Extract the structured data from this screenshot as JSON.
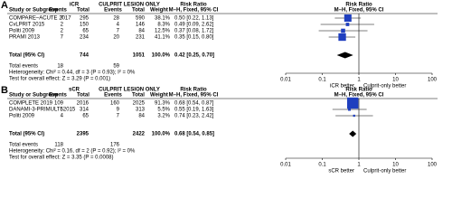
{
  "chart_data": [
    {
      "type": "forest",
      "panel": "A",
      "study_header": "Study or Subgroup",
      "group": "iCR",
      "control": "CULPRIT LESION ONLY",
      "events_header": "Events",
      "total_header": "Total",
      "weight_header": "Weight",
      "rr_col_title": "Risk Ratio",
      "rr_col_method": "M–H, Fixed, 95% CI",
      "plot_title": "Risk Ratio",
      "plot_method": "M–H, Fixed, 95% CI",
      "studies": [
        "COMPARE–ACUTE 2017",
        "CvLPRIT 2015",
        "Politi 2009",
        "PRAMI 2013"
      ],
      "group_events": [
        7,
        2,
        2,
        7
      ],
      "group_total": [
        295,
        150,
        65,
        234
      ],
      "control_events": [
        28,
        4,
        7,
        20
      ],
      "control_total": [
        590,
        146,
        84,
        231
      ],
      "weight": [
        38.1,
        8.3,
        12.5,
        41.1
      ],
      "weight_labels": [
        "38.1%",
        "8.3%",
        "12.5%",
        "41.1%"
      ],
      "values": [
        0.5,
        0.49,
        0.37,
        0.35
      ],
      "ci_low": [
        0.22,
        0.09,
        0.08,
        0.15
      ],
      "ci_high": [
        1.13,
        2.62,
        1.72,
        0.8
      ],
      "value_labels": [
        "0.50 [0.22, 1.13]",
        "0.49 [0.09, 2.62]",
        "0.37 [0.08, 1.72]",
        "0.35 [0.15, 0.80]"
      ],
      "total_label": "Total (95% CI)",
      "total_group": 744,
      "total_control": 1051,
      "total_weight": 100,
      "total_weight_label": "100.0%",
      "total_value": 0.42,
      "total_low": 0.25,
      "total_high": 0.7,
      "total_value_label": "0.42 [0.25, 0.70]",
      "events_label": "Total events",
      "events_group": 18,
      "events_control": 59,
      "heterogeneity": "Heterogeneity: Chi² = 0.44, df = 3 (P = 0.93); I² = 0%",
      "overall": "Test for overall effect: Z = 3.29 (P = 0.001)",
      "log": true,
      "xlim": [
        0.01,
        100
      ],
      "xticks": [
        0.01,
        0.1,
        1,
        10,
        100
      ],
      "reference": 1,
      "xlabel_left": "iCR better",
      "xlabel_right": "Culprit-only better",
      "color": "#1f3fbf"
    },
    {
      "type": "forest",
      "panel": "B",
      "study_header": "Study or Subgroup",
      "group": "sCR",
      "control": "CULPRIT LESION ONLY",
      "events_header": "Events",
      "total_header": "Total",
      "weight_header": "Weight",
      "rr_col_title": "Risk Ratio",
      "rr_col_method": "M–H, Fixed, 95% CI",
      "plot_title": "Risk Ratio",
      "plot_method": "M–H, Fixed, 95% CI",
      "studies": [
        "COMPLETE 2019",
        "DANAMI-3-PRIMULTI 2015",
        "Politi 2009"
      ],
      "group_events": [
        109,
        5,
        4
      ],
      "group_total": [
        2016,
        314,
        65
      ],
      "control_events": [
        160,
        9,
        7
      ],
      "control_total": [
        2025,
        313,
        84
      ],
      "weight": [
        91.3,
        5.5,
        3.2
      ],
      "weight_labels": [
        "91.3%",
        "5.5%",
        "3.2%"
      ],
      "values": [
        0.68,
        0.55,
        0.74
      ],
      "ci_low": [
        0.54,
        0.19,
        0.23
      ],
      "ci_high": [
        0.87,
        1.63,
        2.42
      ],
      "value_labels": [
        "0.68 [0.54, 0.87]",
        "0.55 [0.19, 1.63]",
        "0.74 [0.23, 2.42]"
      ],
      "total_label": "Total (95% CI)",
      "total_group": 2395,
      "total_control": 2422,
      "total_weight": 100,
      "total_weight_label": "100.0%",
      "total_value": 0.68,
      "total_low": 0.54,
      "total_high": 0.85,
      "total_value_label": "0.68 [0.54, 0.85]",
      "events_label": "Total events",
      "events_group": 118,
      "events_control": 176,
      "heterogeneity": "Heterogeneity: Chi² = 0.16, df = 2 (P = 0.92); I² = 0%",
      "overall": "Test for overall effect: Z = 3.35 (P = 0.0008)",
      "log": true,
      "xlim": [
        0.01,
        100
      ],
      "xticks": [
        0.01,
        0.1,
        1,
        10,
        100
      ],
      "reference": 1,
      "xlabel_left": "sCR better",
      "xlabel_right": "Culprit-only better",
      "color": "#1f3fbf"
    }
  ]
}
